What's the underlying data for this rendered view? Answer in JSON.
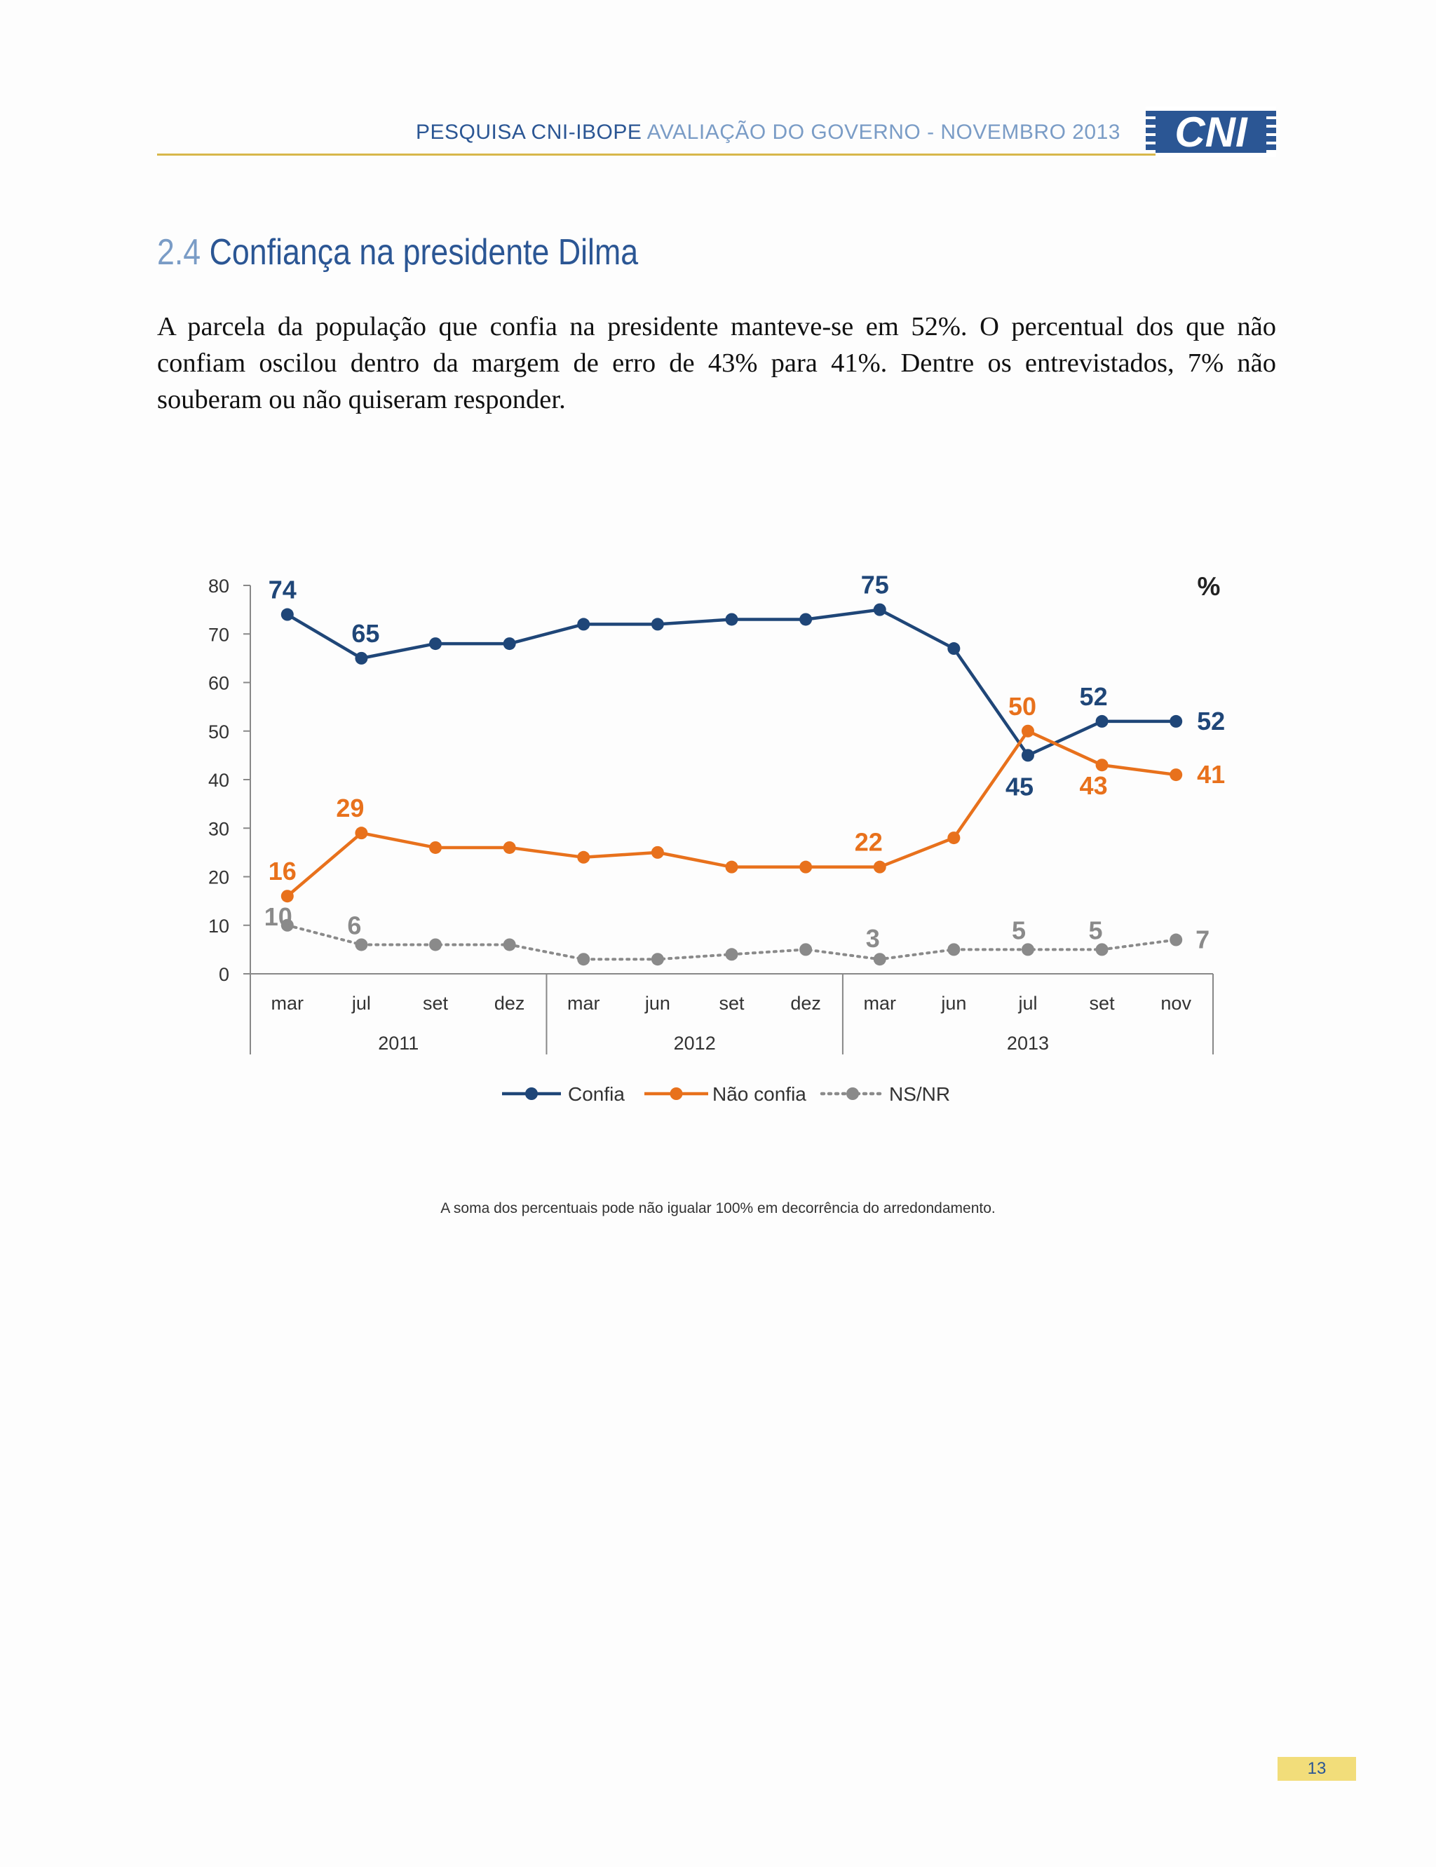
{
  "header": {
    "strong": "PESQUISA CNI-IBOPE",
    "light": "AVALIAÇÃO DO GOVERNO - NOVEMBRO 2013",
    "logo_text": "CNI"
  },
  "section": {
    "number": "2.4",
    "title": "Confiança na presidente Dilma"
  },
  "body_text": "A parcela da população que confia na presidente manteve-se em 52%. O percentual dos que não confiam oscilou dentro da margem de erro de 43% para 41%. Dentre os entrevistados, 7% não souberam ou não quiseram responder.",
  "footnote": "A soma dos percentuais pode não igualar 100% em decorrência do arredondamento.",
  "page_number": "13",
  "colors": {
    "confia": "#1f4678",
    "nao_confia": "#e8711c",
    "nsnr": "#8a8a8a"
  },
  "chart_data": {
    "type": "line",
    "unit_label": "%",
    "ylim": [
      0,
      80
    ],
    "yticks": [
      0,
      10,
      20,
      30,
      40,
      50,
      60,
      70,
      80
    ],
    "categories": [
      "mar",
      "jul",
      "set",
      "dez",
      "mar",
      "jun",
      "set",
      "dez",
      "mar",
      "jun",
      "jul",
      "set",
      "nov"
    ],
    "year_groups": [
      {
        "label": "2011",
        "start": 0,
        "end": 3
      },
      {
        "label": "2012",
        "start": 4,
        "end": 7
      },
      {
        "label": "2013",
        "start": 8,
        "end": 12
      }
    ],
    "series": [
      {
        "name": "Confia",
        "key": "confia",
        "values": [
          74,
          65,
          68,
          68,
          72,
          72,
          73,
          73,
          75,
          67,
          45,
          52,
          52
        ],
        "labels": [
          {
            "i": 0,
            "text": "74"
          },
          {
            "i": 1,
            "text": "65"
          },
          {
            "i": 8,
            "text": "75"
          },
          {
            "i": 10,
            "text": "45"
          },
          {
            "i": 11,
            "text": "52"
          },
          {
            "i": 12,
            "text": "52"
          }
        ]
      },
      {
        "name": "Não confia",
        "key": "nao_confia",
        "values": [
          16,
          29,
          26,
          26,
          24,
          25,
          22,
          22,
          22,
          28,
          50,
          43,
          41
        ],
        "labels": [
          {
            "i": 0,
            "text": "16"
          },
          {
            "i": 1,
            "text": "29"
          },
          {
            "i": 8,
            "text": "22"
          },
          {
            "i": 10,
            "text": "50"
          },
          {
            "i": 11,
            "text": "43"
          },
          {
            "i": 12,
            "text": "41"
          }
        ]
      },
      {
        "name": "NS/NR",
        "key": "nsnr",
        "values": [
          10,
          6,
          6,
          6,
          3,
          3,
          4,
          5,
          3,
          5,
          5,
          5,
          7
        ],
        "labels": [
          {
            "i": 0,
            "text": "10"
          },
          {
            "i": 1,
            "text": "6"
          },
          {
            "i": 8,
            "text": "3"
          },
          {
            "i": 10,
            "text": "5"
          },
          {
            "i": 11,
            "text": "5"
          },
          {
            "i": 12,
            "text": "7"
          }
        ]
      }
    ],
    "legend_position": "bottom"
  }
}
